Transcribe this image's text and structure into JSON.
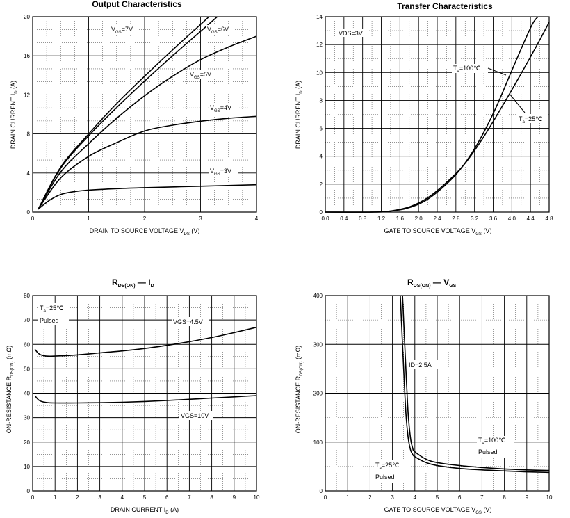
{
  "chart_data": [
    {
      "type": "line",
      "title": "Output Characteristics",
      "xlabel": "DRAIN TO SOURCE VOLTAGE",
      "xlabel_sym": "V",
      "xlabel_sub": "DS",
      "xlabel_unit": "(V)",
      "ylabel": "DRAIN CURRENT",
      "ylabel_sym": "I",
      "ylabel_sub": "D",
      "ylabel_unit": "(A)",
      "xlim": [
        0,
        4
      ],
      "ylim": [
        0,
        20
      ],
      "xticks": [
        "0",
        "1",
        "2",
        "3",
        "4"
      ],
      "yticks": [
        "0",
        "4",
        "8",
        "12",
        "16",
        "20"
      ],
      "series": [
        {
          "name": "VGS=7V",
          "label_main": "V",
          "label_sub": "GS",
          "label_rest": "=7V",
          "x": [
            0.1,
            0.5,
            1.0,
            1.5,
            2.0,
            2.5,
            3.0,
            3.15
          ],
          "y": [
            0.3,
            4.6,
            8.0,
            11.1,
            13.9,
            16.6,
            19.2,
            20.0
          ]
        },
        {
          "name": "VGS=6V",
          "label_main": "V",
          "label_sub": "GS",
          "label_rest": "=6V",
          "x": [
            0.1,
            0.5,
            1.0,
            1.5,
            2.0,
            2.5,
            3.0,
            3.3
          ],
          "y": [
            0.3,
            4.5,
            7.8,
            10.7,
            13.4,
            16.0,
            18.5,
            20.0
          ]
        },
        {
          "name": "VGS=5V",
          "label_main": "V",
          "label_sub": "GS",
          "label_rest": "=5V",
          "x": [
            0.1,
            0.5,
            1.0,
            1.5,
            2.0,
            2.5,
            3.0,
            3.5,
            4.0
          ],
          "y": [
            0.3,
            4.1,
            7.0,
            9.6,
            11.9,
            13.9,
            15.6,
            16.9,
            18.0
          ]
        },
        {
          "name": "VGS=4V",
          "label_main": "V",
          "label_sub": "GS",
          "label_rest": "=4V",
          "x": [
            0.1,
            0.5,
            1.0,
            1.5,
            2.0,
            2.5,
            3.0,
            3.5,
            4.0
          ],
          "y": [
            0.3,
            3.5,
            5.7,
            7.1,
            8.3,
            8.9,
            9.3,
            9.6,
            9.8
          ]
        },
        {
          "name": "VGS=3V",
          "label_main": "V",
          "label_sub": "GS",
          "label_rest": "=3V",
          "x": [
            0.1,
            0.3,
            0.5,
            0.75,
            1.0,
            1.5,
            2.0,
            3.0,
            4.0
          ],
          "y": [
            0.3,
            1.2,
            1.8,
            2.1,
            2.25,
            2.4,
            2.5,
            2.65,
            2.8
          ]
        }
      ]
    },
    {
      "type": "line",
      "title": "Transfer Characteristics",
      "xlabel": "GATE TO SOURCE VOLTAGE",
      "xlabel_sym": "V",
      "xlabel_sub": "GS",
      "xlabel_unit": "(V)",
      "ylabel": "DRAIN CURRENT",
      "ylabel_sym": "I",
      "ylabel_sub": "D",
      "ylabel_unit": "(A)",
      "xlim": [
        0.0,
        5.0
      ],
      "ylim": [
        0,
        14
      ],
      "xticks": [
        "0.0",
        "0.4",
        "0.8",
        "1.2",
        "1.6",
        "2.0",
        "2.4",
        "2.8",
        "3.2",
        "3.6",
        "4.0",
        "4.4",
        "4.8"
      ],
      "yticks": [
        "0",
        "2",
        "4",
        "6",
        "8",
        "10",
        "12",
        "14"
      ],
      "annotation": "VDS=3V",
      "series": [
        {
          "name": "Ta=100℃",
          "label_main": "T",
          "label_sub": "a",
          "label_rest": "=100℃",
          "x": [
            0.0,
            1.0,
            1.4,
            1.8,
            2.2,
            2.6,
            3.0,
            3.4,
            3.8,
            4.2,
            4.6,
            4.75
          ],
          "y": [
            0.0,
            0.0,
            0.05,
            0.25,
            0.75,
            1.7,
            3.0,
            4.9,
            7.4,
            10.4,
            13.3,
            14.0
          ]
        },
        {
          "name": "Ta=25℃",
          "label_main": "T",
          "label_sub": "a",
          "label_rest": "=25℃",
          "x": [
            0.0,
            1.1,
            1.5,
            1.9,
            2.3,
            2.7,
            3.1,
            3.5,
            3.9,
            4.3,
            4.7,
            5.0
          ],
          "y": [
            0.0,
            0.0,
            0.1,
            0.4,
            1.05,
            2.1,
            3.4,
            5.2,
            7.3,
            9.5,
            11.8,
            13.6
          ]
        }
      ]
    },
    {
      "type": "line",
      "title": "RDS(ON) — ID",
      "title_parts": {
        "sym1": "R",
        "sub1": "DS(ON)",
        "dash": "—",
        "sym2": "I",
        "sub2": "D"
      },
      "xlabel": "DRAIN CURRENT",
      "xlabel_sym": "I",
      "xlabel_sub": "D",
      "xlabel_unit": "(A)",
      "ylabel": "ON-RESISTANCE",
      "ylabel_sym": "R",
      "ylabel_sub": "DS(ON)",
      "ylabel_unit": "(mΩ)",
      "xlim": [
        0,
        10
      ],
      "ylim": [
        0,
        80
      ],
      "xticks": [
        "0",
        "1",
        "2",
        "3",
        "4",
        "5",
        "6",
        "7",
        "8",
        "9",
        "10"
      ],
      "yticks": [
        "0",
        "10",
        "20",
        "30",
        "40",
        "50",
        "60",
        "70",
        "80"
      ],
      "annotation_line1": "=25℃",
      "annotation_sym": "T",
      "annotation_sub": "a",
      "annotation_line2": "Pulsed",
      "series": [
        {
          "name": "VGS=4.5V",
          "x": [
            0.1,
            0.3,
            0.6,
            1.0,
            2.0,
            3.0,
            4.0,
            5.0,
            6.0,
            7.0,
            8.0,
            9.0,
            10.0
          ],
          "y": [
            58.0,
            56.0,
            55.2,
            55.2,
            55.7,
            56.5,
            57.3,
            58.3,
            59.6,
            61.1,
            62.8,
            64.8,
            67.0
          ]
        },
        {
          "name": "VGS=10V",
          "x": [
            0.1,
            0.3,
            0.6,
            1.0,
            2.0,
            3.0,
            4.0,
            5.0,
            6.0,
            7.0,
            8.0,
            9.0,
            10.0
          ],
          "y": [
            39.0,
            37.0,
            36.2,
            36.0,
            36.0,
            36.1,
            36.3,
            36.6,
            37.0,
            37.5,
            38.0,
            38.5,
            39.0
          ]
        }
      ]
    },
    {
      "type": "line",
      "title": "RDS(ON) — VGS",
      "title_parts": {
        "sym1": "R",
        "sub1": "DS(ON)",
        "dash": "—",
        "sym2": "V",
        "sub2": "GS"
      },
      "xlabel": "GATE TO SOURCE VOLTAGE",
      "xlabel_sym": "V",
      "xlabel_sub": "GS",
      "xlabel_unit": "(V)",
      "ylabel": "ON-RESISTANCE",
      "ylabel_sym": "R",
      "ylabel_sub": "DS(ON)",
      "ylabel_unit": "(mΩ)",
      "xlim": [
        0,
        10
      ],
      "ylim": [
        0,
        400
      ],
      "xticks": [
        "0",
        "1",
        "2",
        "3",
        "4",
        "5",
        "6",
        "7",
        "8",
        "9",
        "10"
      ],
      "yticks": [
        "0",
        "100",
        "200",
        "300",
        "400"
      ],
      "annotation": "ID=2.5A",
      "series": [
        {
          "name": "Ta=100℃",
          "label_main": "T",
          "label_sub": "a",
          "label_rest": "=100℃",
          "label_line2": "Pulsed",
          "x": [
            3.45,
            3.6,
            3.7,
            3.8,
            3.9,
            4.0,
            4.5,
            5.0,
            6.0,
            7.0,
            8.0,
            9.0,
            10.0
          ],
          "y": [
            400,
            250,
            160,
            110,
            88,
            80,
            65,
            58,
            52,
            48,
            45,
            43,
            42
          ]
        },
        {
          "name": "Ta=25℃",
          "label_main": "T",
          "label_sub": "a",
          "label_rest": "=25℃",
          "label_line2": "Pulsed",
          "x": [
            3.35,
            3.5,
            3.6,
            3.7,
            3.8,
            3.9,
            4.0,
            4.5,
            5.0,
            6.0,
            7.0,
            8.0,
            9.0,
            10.0
          ],
          "y": [
            400,
            250,
            160,
            110,
            85,
            75,
            70,
            58,
            52,
            46,
            43,
            41,
            39,
            38
          ]
        }
      ]
    }
  ]
}
